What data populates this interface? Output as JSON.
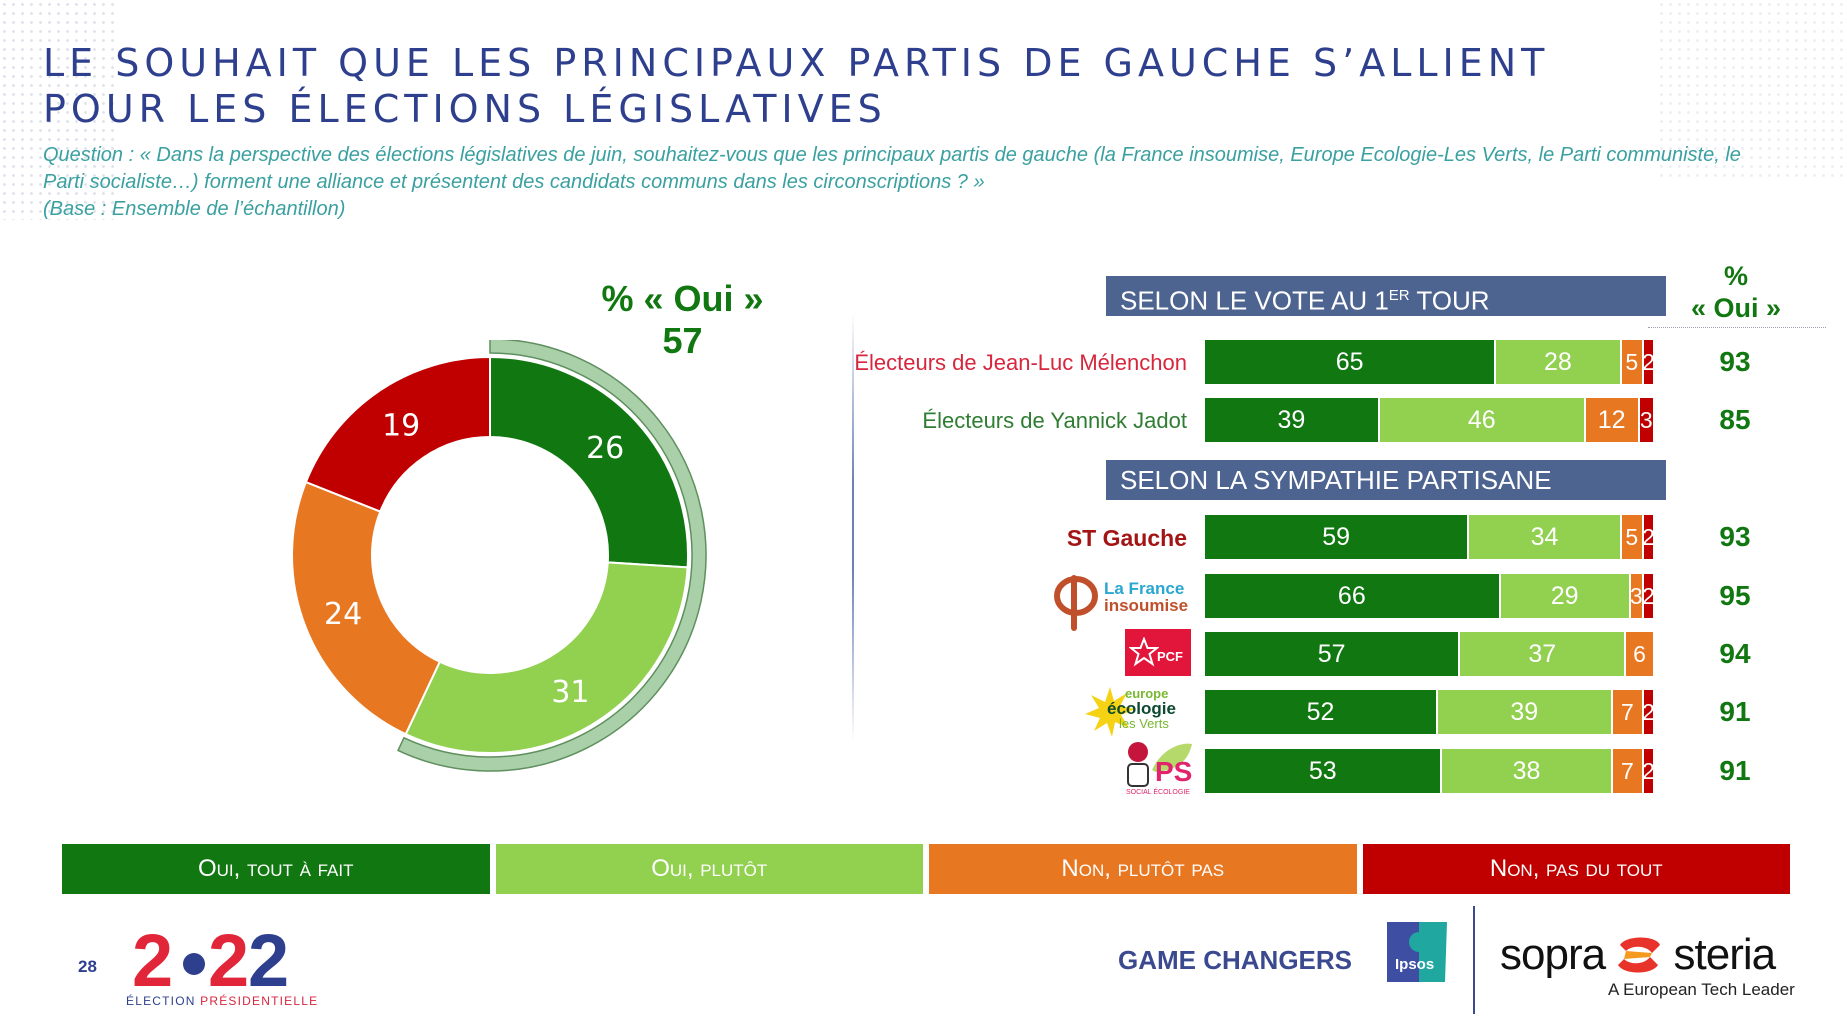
{
  "title": {
    "line1": "LE SOUHAIT QUE LES PRINCIPAUX PARTIS DE GAUCHE S’ALLIENT",
    "line2": "POUR LES ÉLECTIONS LÉGISLATIVES"
  },
  "question": "Question : « Dans la perspective des élections législatives de juin, souhaitez-vous que les principaux partis de gauche (la France insoumise, Europe Ecologie-Les Verts, le Parti communiste, le Parti socialiste…) forment une alliance et présentent des candidats communs dans les circonscriptions ? »",
  "base": "(Base : Ensemble de l’échantillon)",
  "colors": {
    "oui_tout_a_fait": "#117711",
    "oui_plutot": "#92d050",
    "non_plutot_pas": "#e87722",
    "non_pas_du_tout": "#c00000",
    "oui_bracket": "#a9d0a9",
    "section_header": "#4e6490",
    "title_blue": "#2e3f8e",
    "question_teal": "#3aa0a0"
  },
  "chart_data": [
    {
      "type": "pie",
      "variant": "donut",
      "title": "% « Oui »",
      "summary_label": "% « Oui »",
      "summary_value": "57",
      "categories": [
        "Oui, tout à fait",
        "Oui, plutôt",
        "Non, plutôt pas",
        "Non, pas du tout"
      ],
      "values": [
        26,
        31,
        24,
        19
      ],
      "labels": [
        "26",
        "31",
        "24",
        "19"
      ]
    },
    {
      "type": "bar",
      "orientation": "horizontal",
      "stacked": true,
      "normalized_to": 100,
      "legend": [
        "Oui, tout à fait",
        "Oui, plutôt",
        "Non, plutôt pas",
        "Non, pas du tout"
      ],
      "legend_placement": "bottom",
      "pct_oui_header_line1": "%",
      "pct_oui_header_line2": "« Oui »",
      "groups": [
        {
          "title": "SELON LE VOTE AU 1",
          "title_sup": "ER",
          "title_suffix": " TOUR",
          "rows": [
            {
              "label": "Électeurs de Jean-Luc Mélenchon",
              "label_color": "#d7263d",
              "values": [
                65,
                28,
                5,
                2
              ],
              "labels": [
                "65",
                "28",
                "5",
                "2"
              ],
              "pct_oui": "93"
            },
            {
              "label": "Électeurs de Yannick Jadot",
              "label_color": "#2e7d32",
              "values": [
                39,
                46,
                12,
                3
              ],
              "labels": [
                "39",
                "46",
                "12",
                "3"
              ],
              "pct_oui": "85"
            }
          ]
        },
        {
          "title": "SELON LA SYMPATHIE PARTISANE",
          "rows": [
            {
              "label": "ST Gauche",
              "label_color": "#a31515",
              "values": [
                59,
                34,
                5,
                2
              ],
              "labels": [
                "59",
                "34",
                "5",
                "2"
              ],
              "pct_oui": "93"
            },
            {
              "label": "La France insoumise",
              "logo": "lfi-logo",
              "logo_text1": "La France",
              "logo_text2": "insoumise",
              "values": [
                66,
                29,
                3,
                2
              ],
              "labels": [
                "66",
                "29",
                "3",
                "2"
              ],
              "pct_oui": "95"
            },
            {
              "label": "PCF",
              "logo": "pcf-logo",
              "logo_text1": "PCF",
              "values": [
                57,
                37,
                6,
                0
              ],
              "labels": [
                "57",
                "37",
                "6",
                ""
              ],
              "pct_oui": "94"
            },
            {
              "label": "Europe Écologie les Verts",
              "logo": "eelv-logo",
              "logo_text1": "europe",
              "logo_text2": "écologie",
              "logo_text3": "les Verts",
              "values": [
                52,
                39,
                7,
                2
              ],
              "labels": [
                "52",
                "39",
                "7",
                "2"
              ],
              "pct_oui": "91"
            },
            {
              "label": "PS",
              "logo": "ps-logo",
              "logo_text1": "PS",
              "logo_text2": "SOCIAL ÉCOLOGIE",
              "values": [
                53,
                38,
                7,
                2
              ],
              "labels": [
                "53",
                "38",
                "7",
                "2"
              ],
              "pct_oui": "91"
            }
          ]
        }
      ]
    }
  ],
  "legend": [
    {
      "label": "Oui, tout à fait",
      "color": "#117711"
    },
    {
      "label": "Oui, plutôt",
      "color": "#92d050"
    },
    {
      "label": "Non, plutôt pas",
      "color": "#e87722"
    },
    {
      "label": "Non, pas du tout",
      "color": "#c00000"
    }
  ],
  "footer": {
    "page_number": "28",
    "brand_year": "2022",
    "election_label_a": "ÉLECTION ",
    "election_label_b": "PRÉSIDENTIELLE",
    "game_changers": "GAME CHANGERS",
    "ipsos": "Ipsos",
    "sopra_a": "sopra",
    "sopra_b": "steria",
    "sopra_tagline": "A European Tech Leader"
  }
}
